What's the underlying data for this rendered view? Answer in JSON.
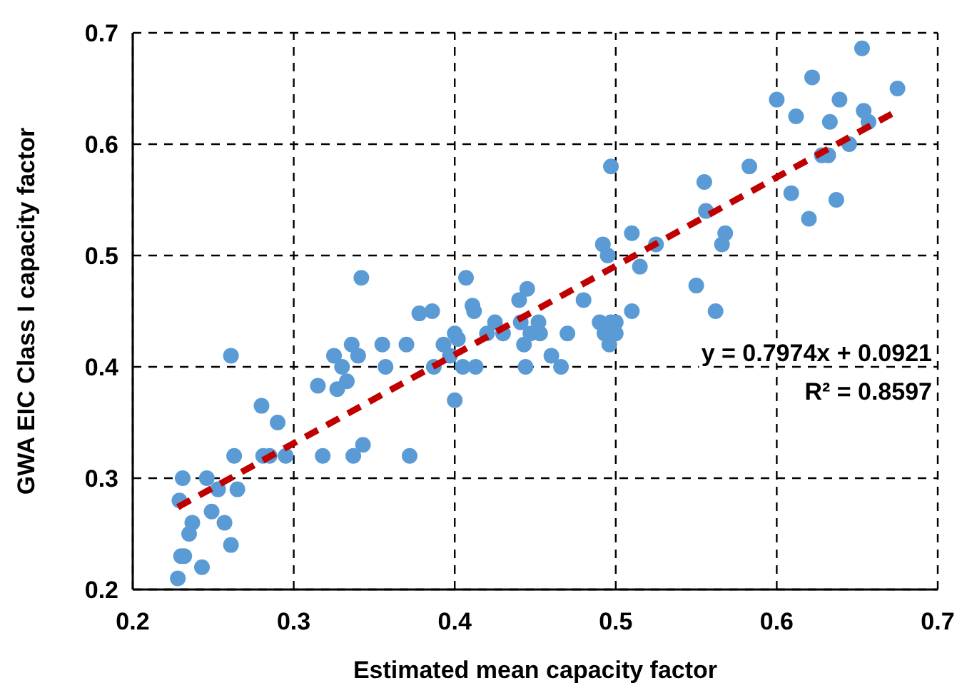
{
  "chart_data": {
    "type": "scatter",
    "xlabel": "Estimated mean capacity factor",
    "ylabel": "GWA EIC Class I capacity factor",
    "xlim": [
      0.2,
      0.7
    ],
    "ylim": [
      0.2,
      0.7
    ],
    "xticks": [
      0.2,
      0.3,
      0.4,
      0.5,
      0.6,
      0.7
    ],
    "yticks": [
      0.2,
      0.3,
      0.4,
      0.5,
      0.6,
      0.7
    ],
    "grid": true,
    "annotations": [
      "y = 0.7974x + 0.0921",
      "R² = 0.8597"
    ],
    "series": [
      {
        "color": "#5b9bd5",
        "marker": "circle",
        "x": [
          0.228,
          0.23,
          0.232,
          0.229,
          0.231,
          0.235,
          0.237,
          0.243,
          0.246,
          0.249,
          0.253,
          0.257,
          0.261,
          0.261,
          0.263,
          0.265,
          0.28,
          0.281,
          0.285,
          0.29,
          0.295,
          0.315,
          0.318,
          0.325,
          0.327,
          0.33,
          0.333,
          0.336,
          0.337,
          0.34,
          0.342,
          0.343,
          0.355,
          0.357,
          0.37,
          0.372,
          0.378,
          0.386,
          0.387,
          0.393,
          0.397,
          0.4,
          0.4,
          0.402,
          0.405,
          0.407,
          0.411,
          0.412,
          0.413,
          0.42,
          0.425,
          0.43,
          0.44,
          0.441,
          0.443,
          0.444,
          0.445,
          0.447,
          0.452,
          0.453,
          0.46,
          0.466,
          0.47,
          0.48,
          0.49,
          0.492,
          0.493,
          0.495,
          0.496,
          0.497,
          0.497,
          0.5,
          0.5,
          0.51,
          0.51,
          0.515,
          0.525,
          0.55,
          0.555,
          0.556,
          0.562,
          0.566,
          0.568,
          0.583,
          0.6,
          0.609,
          0.612,
          0.62,
          0.622,
          0.628,
          0.632,
          0.633,
          0.637,
          0.639,
          0.645,
          0.653,
          0.654,
          0.657,
          0.675
        ],
        "values": [
          0.21,
          0.23,
          0.23,
          0.28,
          0.3,
          0.25,
          0.26,
          0.22,
          0.3,
          0.27,
          0.29,
          0.26,
          0.24,
          0.41,
          0.32,
          0.29,
          0.365,
          0.32,
          0.32,
          0.35,
          0.32,
          0.383,
          0.32,
          0.41,
          0.38,
          0.4,
          0.387,
          0.42,
          0.32,
          0.41,
          0.48,
          0.33,
          0.42,
          0.4,
          0.42,
          0.32,
          0.448,
          0.45,
          0.4,
          0.42,
          0.41,
          0.37,
          0.43,
          0.425,
          0.4,
          0.48,
          0.455,
          0.45,
          0.4,
          0.43,
          0.44,
          0.43,
          0.46,
          0.44,
          0.42,
          0.4,
          0.47,
          0.43,
          0.44,
          0.43,
          0.41,
          0.4,
          0.43,
          0.46,
          0.44,
          0.51,
          0.43,
          0.5,
          0.42,
          0.58,
          0.44,
          0.43,
          0.44,
          0.45,
          0.52,
          0.49,
          0.51,
          0.473,
          0.566,
          0.54,
          0.45,
          0.51,
          0.52,
          0.58,
          0.64,
          0.556,
          0.625,
          0.533,
          0.66,
          0.59,
          0.59,
          0.62,
          0.55,
          0.64,
          0.6,
          0.686,
          0.63,
          0.62,
          0.65
        ]
      },
      {
        "type": "line",
        "color": "#c00000",
        "line_style": "dashed",
        "x": [
          0.228,
          0.675
        ],
        "values": [
          0.274,
          0.63
        ]
      }
    ]
  }
}
